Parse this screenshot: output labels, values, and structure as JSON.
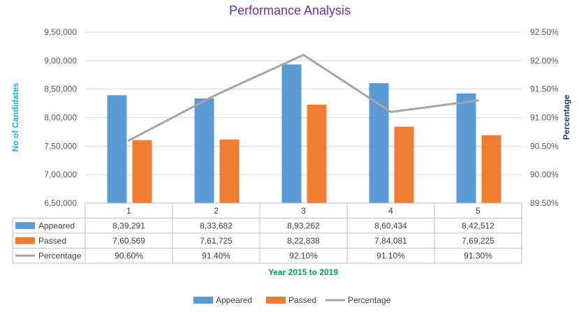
{
  "chart_data": {
    "type": "bar",
    "title": "Performance Analysis",
    "xlabel": "Year 2015 to 2019",
    "ylabel_left": "No of Candidates",
    "ylabel_right": "Percentage",
    "categories": [
      "1",
      "2",
      "3",
      "4",
      "5"
    ],
    "ylim": [
      650000,
      950000
    ],
    "y_ticks": [
      "6,50,000",
      "7,00,000",
      "7,50,000",
      "8,00,000",
      "8,50,000",
      "9,00,000",
      "9,50,000"
    ],
    "y2lim": [
      89.5,
      92.5
    ],
    "y2_ticks": [
      "89.50%",
      "90.00%",
      "90.50%",
      "91.00%",
      "91.50%",
      "92.00%",
      "92.50%"
    ],
    "series": [
      {
        "name": "Appeared",
        "kind": "bar",
        "color": "#5B9BD5",
        "values": [
          839291,
          833682,
          893262,
          860434,
          842512
        ],
        "labels": [
          "8,39,291",
          "8,33,682",
          "8,93,262",
          "8,60,434",
          "8,42,512"
        ]
      },
      {
        "name": "Passed",
        "kind": "bar",
        "color": "#ED7D31",
        "values": [
          760569,
          761725,
          822838,
          784081,
          769225
        ],
        "labels": [
          "7,60,569",
          "7,61,725",
          "8,22,838",
          "7,84,081",
          "7,69,225"
        ]
      },
      {
        "name": "Percentage",
        "kind": "line",
        "axis": "right",
        "color": "#A5A5A5",
        "values": [
          90.6,
          91.4,
          92.1,
          91.1,
          91.3
        ],
        "labels": [
          "90.60%",
          "91.40%",
          "92.10%",
          "91.10%",
          "91.30%"
        ]
      }
    ],
    "grid": true,
    "data_table": true,
    "legend": "bottom"
  }
}
